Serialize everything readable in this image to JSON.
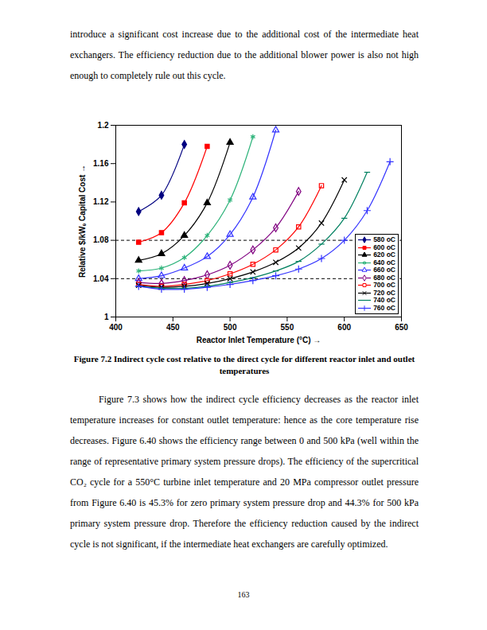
{
  "paragraphs_before": [
    "introduce a significant cost increase due to the additional cost of the intermediate heat exchangers. The efficiency reduction due to the additional blower power is also not high enough to completely rule out this cycle."
  ],
  "chart_data": {
    "type": "line",
    "xlabel": "Reactor Inlet Temperature (°C)",
    "ylabel": "Relative $/kWₑ Capital Cost",
    "x": [
      420,
      440,
      460,
      480,
      500,
      520,
      540,
      560,
      580,
      600,
      620,
      640
    ],
    "xlim": [
      400,
      650
    ],
    "xticks": [
      400,
      450,
      500,
      550,
      600,
      650
    ],
    "ylim": [
      1,
      1.2
    ],
    "yticks": [
      1,
      1.04,
      1.08,
      1.12,
      1.16,
      1.2
    ],
    "grid": false,
    "legend": "lower right",
    "reference_lines": [
      {
        "y": 1.04,
        "line_style": "dashed"
      },
      {
        "y": 1.08,
        "line_style": "dashed"
      }
    ],
    "series": [
      {
        "name": "580 oC",
        "color": "#000080",
        "marker": "diamond",
        "values": [
          1.11,
          1.127,
          1.18,
          null,
          null,
          null,
          null,
          null,
          null,
          null,
          null,
          null
        ]
      },
      {
        "name": "600 oC",
        "color": "#ff0000",
        "marker": "square",
        "values": [
          1.078,
          1.088,
          1.119,
          1.178,
          null,
          null,
          null,
          null,
          null,
          null,
          null,
          null
        ]
      },
      {
        "name": "620 oC",
        "color": "#000000",
        "marker": "triangle",
        "values": [
          1.059,
          1.066,
          1.085,
          1.119,
          1.182,
          null,
          null,
          null,
          null,
          null,
          null,
          null
        ]
      },
      {
        "name": "640 oC",
        "color": "#2db37a",
        "marker": "asterisk",
        "values": [
          1.048,
          1.051,
          1.062,
          1.085,
          1.122,
          1.188,
          null,
          null,
          null,
          null,
          null,
          null
        ]
      },
      {
        "name": "660 oC",
        "color": "#3333ff",
        "marker": "triangle-open",
        "values": [
          1.04,
          1.043,
          1.051,
          1.063,
          1.086,
          1.125,
          1.195,
          null,
          null,
          null,
          null,
          null
        ]
      },
      {
        "name": "680 oC",
        "color": "#800080",
        "marker": "diamond-open",
        "values": [
          1.036,
          1.035,
          1.038,
          1.044,
          1.054,
          1.07,
          1.093,
          1.131,
          null,
          null,
          null,
          null
        ]
      },
      {
        "name": "700 oC",
        "color": "#ff0000",
        "marker": "square-open",
        "values": [
          1.034,
          1.032,
          1.034,
          1.038,
          1.045,
          1.055,
          1.07,
          1.094,
          1.137,
          null,
          null,
          null
        ]
      },
      {
        "name": "720 oC",
        "color": "#000000",
        "marker": "x",
        "values": [
          1.033,
          1.031,
          1.032,
          1.035,
          1.04,
          1.047,
          1.057,
          1.072,
          1.098,
          1.143,
          null,
          null
        ]
      },
      {
        "name": "740 oC",
        "color": "#008060",
        "marker": "dash",
        "values": [
          1.032,
          1.03,
          1.03,
          1.032,
          1.036,
          1.041,
          1.048,
          1.058,
          1.076,
          1.103,
          1.151,
          null
        ]
      },
      {
        "name": "760 oC",
        "color": "#3333ff",
        "marker": "plus",
        "values": [
          1.032,
          1.029,
          1.029,
          1.031,
          1.034,
          1.038,
          1.043,
          1.05,
          1.061,
          1.08,
          1.111,
          1.162
        ]
      }
    ]
  },
  "caption": "Figure 7.2 Indirect cycle cost relative to the direct cycle for different reactor inlet and outlet temperatures",
  "paragraphs_after": [
    "Figure 7.3 shows how the indirect cycle efficiency decreases as the reactor inlet temperature increases for constant outlet temperature: hence as the core temperature rise decreases. Figure 6.40 shows the efficiency range between 0 and 500 kPa (well within the range of representative primary system pressure drops). The efficiency of the supercritical CO₂ cycle for a 550°C turbine inlet temperature and 20 MPa compressor outlet pressure from Figure 6.40 is 45.3% for zero primary system pressure drop and 44.3% for 500 kPa primary system pressure drop. Therefore the efficiency reduction caused by the indirect cycle is not significant, if the intermediate heat exchangers are carefully optimized."
  ],
  "page_number": "163"
}
